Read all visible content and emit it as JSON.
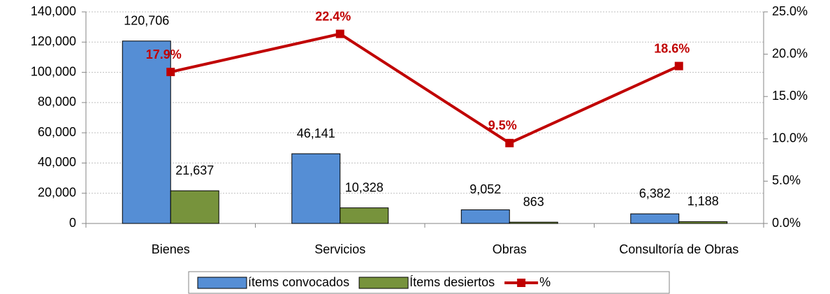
{
  "chart_data": {
    "type": "bar-line",
    "categories": [
      "Bienes",
      "Servicios",
      "Obras",
      "Consultoría de Obras"
    ],
    "series": [
      {
        "name": "ítems convocados",
        "color": "#558ed5",
        "values": [
          120706,
          46141,
          9052,
          6382
        ],
        "value_labels": [
          "120,706",
          "46,141",
          "9,052",
          "6,382"
        ]
      },
      {
        "name": "Ítems desiertos",
        "color": "#77933c",
        "values": [
          21637,
          10328,
          863,
          1188
        ],
        "value_labels": [
          "21,637",
          "10,328",
          "863",
          "1,188"
        ]
      },
      {
        "name": "%",
        "color": "#c00000",
        "axis": "y2",
        "type": "line",
        "values": [
          17.9,
          22.4,
          9.5,
          18.6
        ],
        "value_labels": [
          "17.9%",
          "22.4%",
          "9.5%",
          "18.6%"
        ]
      }
    ],
    "ylim": [
      0,
      140000
    ],
    "yticks": [
      0,
      {
        "value": 20000,
        "label": "20,000"
      },
      {
        "value": 40000,
        "label": "40,000"
      },
      {
        "value": 60000,
        "label": "60,000"
      },
      {
        "value": 80000,
        "label": "80,000"
      },
      {
        "value": 100000,
        "label": "100,000"
      },
      {
        "value": 120000,
        "label": "120,000"
      },
      {
        "value": 140000,
        "label": "140,000"
      }
    ],
    "y2lim": [
      0,
      25
    ],
    "y2ticks": [
      {
        "value": 0,
        "label": "0.0%"
      },
      {
        "value": 5,
        "label": "5.0%"
      },
      {
        "value": 10,
        "label": "10.0%"
      },
      {
        "value": 15,
        "label": "15.0%"
      },
      {
        "value": 20,
        "label": "20.0%"
      },
      {
        "value": 25,
        "label": "25.0%"
      }
    ],
    "grid": true,
    "legend": "bottom"
  }
}
